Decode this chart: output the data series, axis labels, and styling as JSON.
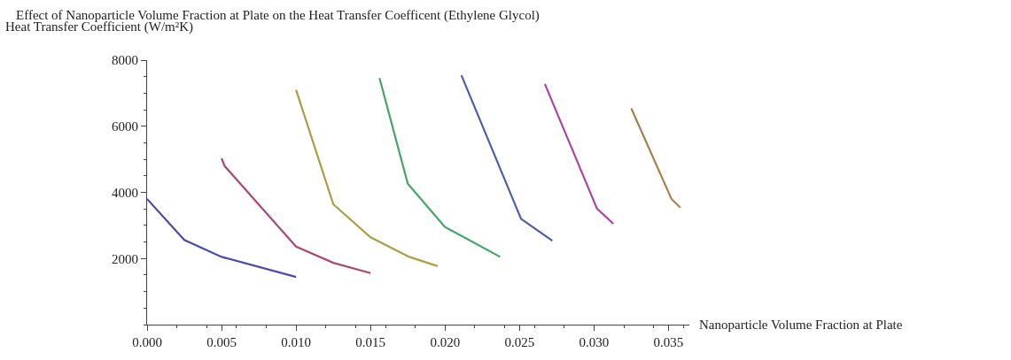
{
  "chart_data": {
    "type": "line",
    "title": "Effect of Nanoparticle Volume Fraction at Plate on the Heat Transfer Coefficent (Ethylene Glycol)",
    "xlabel": "Nanoparticle Volume Fraction at Plate",
    "ylabel": "Heat Transfer Coefficient (W/m²K)",
    "xlim": [
      0,
      0.0364
    ],
    "ylim": [
      0,
      8000
    ],
    "xticks": [
      {
        "value": 0,
        "label": "0.000"
      },
      0.005,
      {
        "value": 0.01,
        "label": "0.010"
      },
      0.015,
      {
        "value": 0.02,
        "label": "0.020"
      },
      0.025,
      {
        "value": 0.03,
        "label": "0.030"
      },
      0.035
    ],
    "yticks": [
      2000,
      4000,
      6000,
      8000
    ],
    "marker": "none",
    "line_style": "solid",
    "series": [
      {
        "color": "#4b4bab",
        "x": [
          0,
          0.0025,
          0.005,
          0.01
        ],
        "values": [
          3800,
          2560,
          2050,
          1440
        ]
      },
      {
        "color": "#ab4a78",
        "x": [
          0.005,
          0.0052,
          0.01,
          0.0125,
          0.015
        ],
        "values": [
          5030,
          4800,
          2360,
          1870,
          1560
        ]
      },
      {
        "color": "#ab9e45",
        "x": [
          0.01,
          0.0125,
          0.015,
          0.0176,
          0.0195
        ],
        "values": [
          7100,
          3640,
          2640,
          2050,
          1770
        ]
      },
      {
        "color": "#45a565",
        "x": [
          0.0156,
          0.0175,
          0.02,
          0.0237
        ],
        "values": [
          7460,
          4260,
          2950,
          2050
        ]
      },
      {
        "color": "#4b5fab",
        "x": [
          0.0211,
          0.0251,
          0.0272
        ],
        "values": [
          7540,
          3200,
          2540
        ]
      },
      {
        "color": "#ab45a5",
        "x": [
          0.0267,
          0.0302,
          0.0313
        ],
        "values": [
          7280,
          3510,
          3050
        ]
      },
      {
        "color": "#a8804f",
        "x": [
          0.0325,
          0.0352,
          0.0358
        ],
        "values": [
          6540,
          3800,
          3540
        ]
      }
    ]
  }
}
